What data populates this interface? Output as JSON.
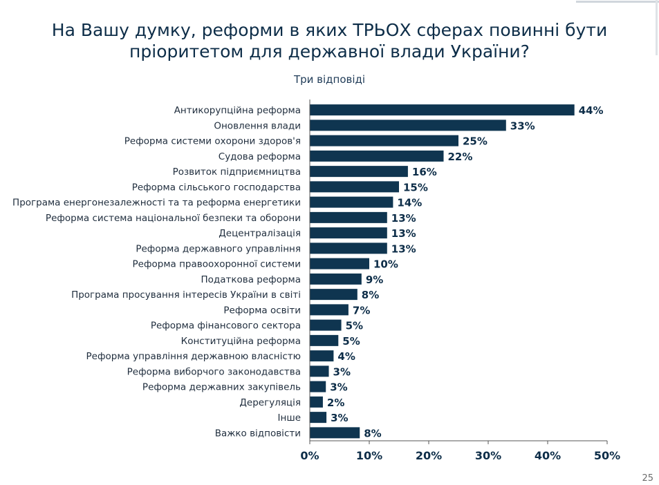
{
  "title_line1": "На Вашу думку, реформи в яких ТРЬОХ сферах повинні бути",
  "title_line2": "пріоритетом для державної влади України?",
  "subtitle": "Три відповіді",
  "page_number": "25",
  "colors": {
    "bar": "#0f3550",
    "axis": "#555555",
    "title": "#0d2d48"
  },
  "chart_data": {
    "type": "bar",
    "orientation": "horizontal",
    "title": "На Вашу думку, реформи в яких ТРЬОХ сферах повинні бути пріоритетом для державної влади України?",
    "subtitle": "Три відповіді",
    "categories": [
      "Антикорупційна реформа",
      "Оновлення влади",
      "Реформа системи охорони здоров'я",
      "Судова реформа",
      "Розвиток підприємництва",
      "Реформа сільського господарства",
      "Програма енергонезалежності та та реформа енергетики",
      "Реформа система національної безпеки та оборони",
      "Децентралізація",
      "Реформа державного управління",
      "Реформа правоохоронної системи",
      "Податкова реформа",
      "Програма просування інтересів України в світі",
      "Реформа освіти",
      "Реформа фінансового сектора",
      "Конституційна реформа",
      "Реформа управління державною власністю",
      "Реформа виборчого законодавства",
      "Реформа державних закупівель",
      "Дерегуляція",
      "Інше",
      "Важко відповісти"
    ],
    "values": [
      44.5,
      33,
      25,
      22.5,
      16.5,
      15,
      14,
      13,
      13,
      13,
      10,
      8.7,
      8,
      6.5,
      5.3,
      4.8,
      4,
      3.2,
      2.7,
      2.2,
      2.8,
      8.4
    ],
    "labels": [
      "44%",
      "33%",
      "25%",
      "22%",
      "16%",
      "15%",
      "14%",
      "13%",
      "13%",
      "13%",
      "10%",
      "9%",
      "8%",
      "7%",
      "5%",
      "5%",
      "4%",
      "3%",
      "3%",
      "2%",
      "3%",
      "8%"
    ],
    "x_ticks": [
      "0%",
      "10%",
      "20%",
      "30%",
      "40%",
      "50%"
    ],
    "xlim": [
      0,
      50
    ],
    "grid": false,
    "legend": "none"
  }
}
